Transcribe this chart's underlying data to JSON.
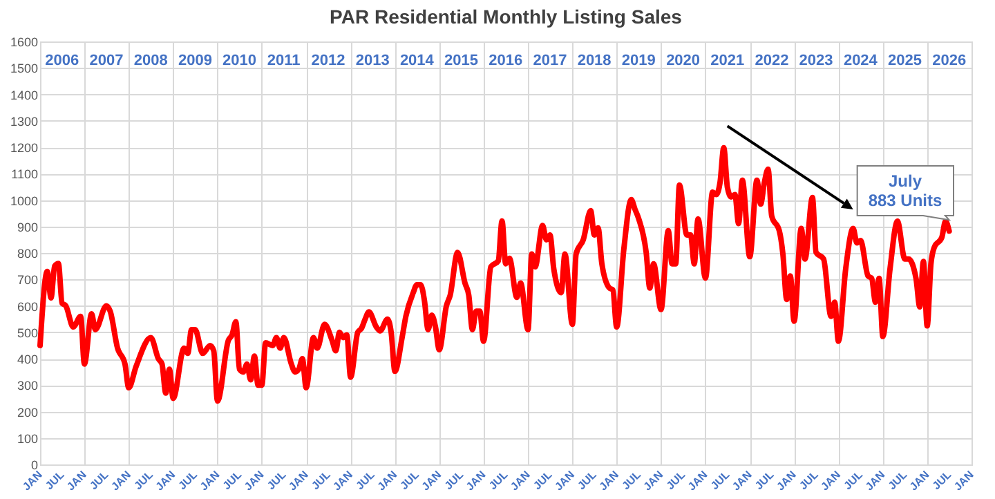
{
  "chart_data": {
    "type": "line",
    "title": "PAR Residential Monthly Listing Sales",
    "x": [
      "2006-01",
      "2006-03",
      "2006-04",
      "2006-05",
      "2006-06",
      "2006-07",
      "2006-08",
      "2006-10",
      "2006-12",
      "2007-01",
      "2007-03",
      "2007-04",
      "2007-07",
      "2007-08",
      "2007-10",
      "2007-12",
      "2008-01",
      "2008-03",
      "2008-07",
      "2008-09",
      "2008-10",
      "2008-11",
      "2008-12",
      "2009-01",
      "2009-04",
      "2009-05",
      "2009-06",
      "2009-07",
      "2009-09",
      "2009-11",
      "2009-12",
      "2010-01",
      "2010-04",
      "2010-05",
      "2010-06",
      "2010-07",
      "2010-08",
      "2010-09",
      "2010-10",
      "2010-11",
      "2010-12",
      "2011-01",
      "2011-02",
      "2011-04",
      "2011-05",
      "2011-06",
      "2011-07",
      "2011-09",
      "2011-10",
      "2011-11",
      "2011-12",
      "2012-01",
      "2012-03",
      "2012-04",
      "2012-06",
      "2012-08",
      "2012-09",
      "2012-10",
      "2012-11",
      "2012-12",
      "2013-01",
      "2013-03",
      "2013-04",
      "2013-05",
      "2013-06",
      "2013-08",
      "2013-09",
      "2013-11",
      "2013-12",
      "2014-01",
      "2014-03",
      "2014-04",
      "2014-06",
      "2014-07",
      "2014-08",
      "2014-09",
      "2014-10",
      "2014-11",
      "2014-12",
      "2015-01",
      "2015-03",
      "2015-04",
      "2015-06",
      "2015-08",
      "2015-09",
      "2015-10",
      "2015-11",
      "2015-12",
      "2016-01",
      "2016-03",
      "2016-05",
      "2016-06",
      "2016-07",
      "2016-08",
      "2016-10",
      "2016-11",
      "2017-01",
      "2017-02",
      "2017-03",
      "2017-05",
      "2017-06",
      "2017-07",
      "2017-08",
      "2017-10",
      "2017-11",
      "2018-01",
      "2018-02",
      "2018-04",
      "2018-06",
      "2018-07",
      "2018-08",
      "2018-09",
      "2018-11",
      "2018-12",
      "2019-01",
      "2019-03",
      "2019-05",
      "2019-06",
      "2019-07",
      "2019-09",
      "2019-10",
      "2019-11",
      "2020-01",
      "2020-03",
      "2020-04",
      "2020-05",
      "2020-06",
      "2020-08",
      "2020-09",
      "2020-10",
      "2020-11",
      "2021-01",
      "2021-03",
      "2021-04",
      "2021-05",
      "2021-06",
      "2021-07",
      "2021-08",
      "2021-09",
      "2021-10",
      "2021-11",
      "2022-01",
      "2022-03",
      "2022-04",
      "2022-05",
      "2022-06",
      "2022-07",
      "2022-09",
      "2022-10",
      "2022-11",
      "2022-12",
      "2023-01",
      "2023-03",
      "2023-04",
      "2023-06",
      "2023-07",
      "2023-09",
      "2023-11",
      "2023-12",
      "2024-01",
      "2024-03",
      "2024-05",
      "2024-06",
      "2024-07",
      "2024-09",
      "2024-10",
      "2024-11",
      "2024-12",
      "2025-01",
      "2025-03",
      "2025-05",
      "2025-07",
      "2025-08",
      "2025-10",
      "2025-11",
      "2025-12",
      "2026-01",
      "2026-02",
      "2026-03",
      "2026-05",
      "2026-06",
      "2026-07"
    ],
    "series": [
      {
        "color": "#ff0000",
        "values": [
          450,
          730,
          630,
          750,
          760,
          610,
          600,
          520,
          560,
          380,
          570,
          510,
          600,
          580,
          440,
          380,
          290,
          370,
          480,
          400,
          380,
          270,
          360,
          250,
          440,
          420,
          510,
          510,
          420,
          450,
          430,
          240,
          470,
          490,
          540,
          360,
          350,
          380,
          320,
          410,
          300,
          300,
          460,
          450,
          480,
          440,
          480,
          380,
          350,
          360,
          400,
          290,
          480,
          440,
          530,
          470,
          430,
          500,
          480,
          490,
          330,
          500,
          515,
          550,
          577,
          520,
          505,
          550,
          500,
          352,
          480,
          560,
          650,
          680,
          680,
          620,
          510,
          565,
          520,
          434,
          600,
          640,
          802,
          686,
          640,
          510,
          580,
          580,
          466,
          748,
          770,
          921,
          759,
          780,
          632,
          686,
          510,
          796,
          748,
          904,
          850,
          868,
          740,
          650,
          796,
          530,
          796,
          850,
          960,
          868,
          895,
          760,
          668,
          660,
          520,
          814,
          1002,
          965,
          930,
          802,
          667,
          759,
          586,
          884,
          759,
          759,
          1057,
          868,
          868,
          759,
          929,
          705,
          1030,
          1021,
          1066,
          1198,
          1048,
          1012,
          1021,
          911,
          1075,
          786,
          1075,
          985,
          1066,
          1117,
          939,
          884,
          795,
          624,
          713,
          542,
          893,
          777,
          1010,
          802,
          777,
          560,
          614,
          466,
          740,
          893,
          838,
          847,
          713,
          704,
          614,
          704,
          484,
          740,
          920,
          777,
          777,
          704,
          596,
          768,
          524,
          759,
          822,
          858,
          920,
          883
        ]
      }
    ],
    "xlim": [
      "2006-01",
      "2027-01"
    ],
    "xticks": [
      {
        "value": "2006-01",
        "label": "JAN"
      },
      {
        "value": "2006-07",
        "label": "JUL"
      },
      {
        "value": "2007-01",
        "label": "JAN"
      },
      {
        "value": "2007-07",
        "label": "JUL"
      },
      {
        "value": "2008-01",
        "label": "JAN"
      },
      {
        "value": "2008-07",
        "label": "JUL"
      },
      {
        "value": "2009-01",
        "label": "JAN"
      },
      {
        "value": "2009-07",
        "label": "JUL"
      },
      {
        "value": "2010-01",
        "label": "JAN"
      },
      {
        "value": "2010-07",
        "label": "JUL"
      },
      {
        "value": "2011-01",
        "label": "JAN"
      },
      {
        "value": "2011-07",
        "label": "JUL"
      },
      {
        "value": "2012-01",
        "label": "JAN"
      },
      {
        "value": "2012-07",
        "label": "JUL"
      },
      {
        "value": "2013-01",
        "label": "JAN"
      },
      {
        "value": "2013-07",
        "label": "JUL"
      },
      {
        "value": "2014-01",
        "label": "JAN"
      },
      {
        "value": "2014-07",
        "label": "JUL"
      },
      {
        "value": "2015-01",
        "label": "JAN"
      },
      {
        "value": "2015-07",
        "label": "JUL"
      },
      {
        "value": "2016-01",
        "label": "JAN"
      },
      {
        "value": "2016-07",
        "label": "JUL"
      },
      {
        "value": "2017-01",
        "label": "JAN"
      },
      {
        "value": "2017-07",
        "label": "JUL"
      },
      {
        "value": "2018-01",
        "label": "JAN"
      },
      {
        "value": "2018-07",
        "label": "JUL"
      },
      {
        "value": "2019-01",
        "label": "JAN"
      },
      {
        "value": "2019-07",
        "label": "JUL"
      },
      {
        "value": "2020-01",
        "label": "JAN"
      },
      {
        "value": "2020-07",
        "label": "JUL"
      },
      {
        "value": "2021-01",
        "label": "JAN"
      },
      {
        "value": "2021-07",
        "label": "JUL"
      },
      {
        "value": "2022-01",
        "label": "JAN"
      },
      {
        "value": "2022-07",
        "label": "JUL"
      },
      {
        "value": "2023-01",
        "label": "JAN"
      },
      {
        "value": "2023-07",
        "label": "JUL"
      },
      {
        "value": "2024-01",
        "label": "JAN"
      },
      {
        "value": "2024-07",
        "label": "JUL"
      },
      {
        "value": "2025-01",
        "label": "JAN"
      },
      {
        "value": "2025-07",
        "label": "JUL"
      },
      {
        "value": "2026-01",
        "label": "JAN"
      },
      {
        "value": "2026-07",
        "label": "JUL"
      },
      {
        "value": "2027-01",
        "label": "JAN"
      }
    ],
    "x2lim": [
      "2006-01",
      "2027-01"
    ],
    "x2ticks": [
      {
        "value": "2006-07",
        "label": "2006"
      },
      {
        "value": "2007-07",
        "label": "2007"
      },
      {
        "value": "2008-07",
        "label": "2008"
      },
      {
        "value": "2009-07",
        "label": "2009"
      },
      {
        "value": "2010-07",
        "label": "2010"
      },
      {
        "value": "2011-07",
        "label": "2011"
      },
      {
        "value": "2012-07",
        "label": "2012"
      },
      {
        "value": "2013-07",
        "label": "2013"
      },
      {
        "value": "2014-07",
        "label": "2014"
      },
      {
        "value": "2015-07",
        "label": "2015"
      },
      {
        "value": "2016-07",
        "label": "2016"
      },
      {
        "value": "2017-07",
        "label": "2017"
      },
      {
        "value": "2018-07",
        "label": "2018"
      },
      {
        "value": "2019-07",
        "label": "2019"
      },
      {
        "value": "2020-07",
        "label": "2020"
      },
      {
        "value": "2021-07",
        "label": "2021"
      },
      {
        "value": "2022-07",
        "label": "2022"
      },
      {
        "value": "2023-07",
        "label": "2023"
      },
      {
        "value": "2024-07",
        "label": "2024"
      },
      {
        "value": "2025-07",
        "label": "2025"
      },
      {
        "value": "2026-07",
        "label": "2026"
      }
    ],
    "ylim": [
      0,
      1600
    ],
    "yticks": [
      0,
      100,
      200,
      300,
      400,
      500,
      600,
      700,
      800,
      900,
      1000,
      1100,
      1200,
      1300,
      1400,
      1500,
      1600
    ],
    "grid": true,
    "line_style": "solid",
    "annotations": [
      "July\n883 Units"
    ]
  }
}
